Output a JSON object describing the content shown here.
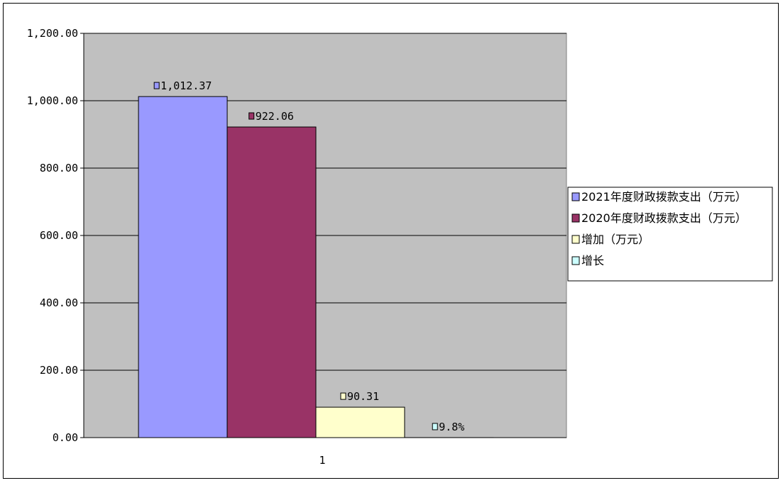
{
  "chart_data": {
    "type": "bar",
    "categories": [
      "1"
    ],
    "series": [
      {
        "name": "2021年度财政拨款支出（万元）",
        "values": [
          1012.37
        ],
        "label": "1,012.37",
        "color": "#9999ff"
      },
      {
        "name": "2020年度财政拨款支出（万元）",
        "values": [
          922.06
        ],
        "label": "922.06",
        "color": "#993366"
      },
      {
        "name": "增加（万元）",
        "values": [
          90.31
        ],
        "label": "90.31",
        "color": "#ffffcc"
      },
      {
        "name": "增长",
        "values": [
          0.098
        ],
        "label": "9.8%",
        "color": "#ccffff"
      }
    ],
    "ylim": [
      0,
      1200
    ],
    "yticks": [
      "0.00",
      "200.00",
      "400.00",
      "600.00",
      "800.00",
      "1,000.00",
      "1,200.00"
    ],
    "ytick_values": [
      0,
      200,
      400,
      600,
      800,
      1000,
      1200
    ],
    "grid": true,
    "legend": "right",
    "plot_background": "#c0c0c0"
  }
}
